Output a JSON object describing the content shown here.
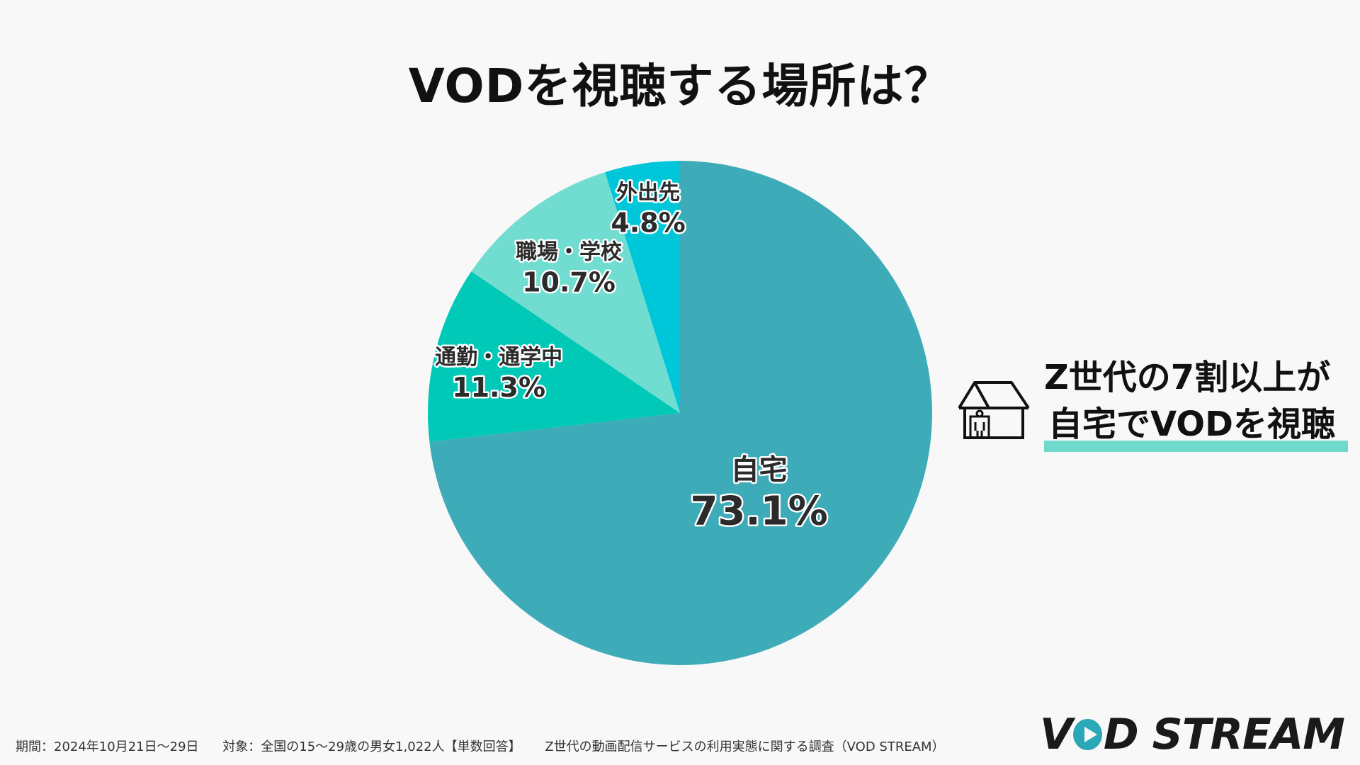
{
  "title": "VODを視聴する場所は？",
  "chart_data": {
    "type": "pie",
    "title": "VODを視聴する場所は？",
    "start": "12 o'clock",
    "direction": "clockwise",
    "slices": [
      {
        "label": "自宅",
        "value": 73.1,
        "value_label": "73.1%",
        "color": "#3eabb8"
      },
      {
        "label": "通勤・通学中",
        "value": 11.3,
        "value_label": "11.3%",
        "color": "#00c9b7"
      },
      {
        "label": "職場・学校",
        "value": 10.7,
        "value_label": "10.7%",
        "color": "#70ddd0"
      },
      {
        "label": "外出先",
        "value": 4.8,
        "value_label": "4.8%",
        "color": "#00c6da"
      }
    ]
  },
  "callout": {
    "line1": "Z世代の7割以上が",
    "line2": "自宅でVODを視聴",
    "icon": "house-person-icon",
    "highlight_color": "#6fdacb"
  },
  "footer": {
    "period": "期間：2024年10月21日〜29日",
    "target": "対象：全国の15〜29歳の男女1,022人【単数回答】",
    "source": "Z世代の動画配信サービスの利用実態に関する調査（VOD STREAM）"
  },
  "logo": {
    "left": "V",
    "right": "D STREAM"
  }
}
